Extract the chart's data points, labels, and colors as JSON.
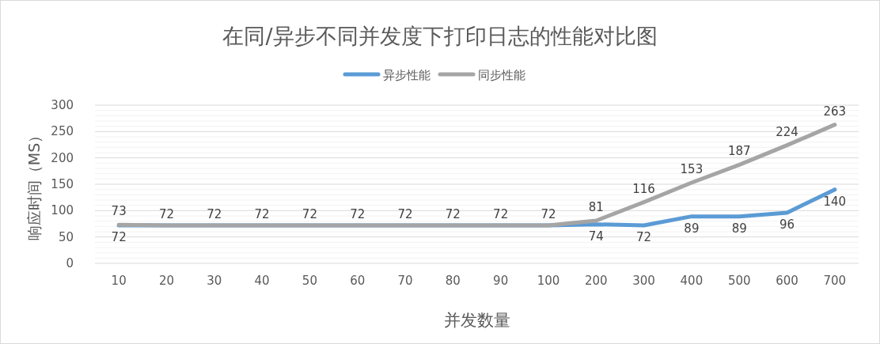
{
  "chart_data": {
    "type": "line",
    "title": "在同/异步不同并发度下打印日志的性能对比图",
    "xlabel": "并发数量",
    "ylabel": "响应时间（MS）",
    "categories": [
      "10",
      "20",
      "30",
      "40",
      "50",
      "60",
      "70",
      "80",
      "90",
      "100",
      "200",
      "300",
      "400",
      "500",
      "600",
      "700"
    ],
    "series": [
      {
        "name": "异步性能",
        "color": "#5b9bd5",
        "values": [
          72,
          72,
          72,
          72,
          72,
          72,
          72,
          72,
          72,
          72,
          74,
          72,
          89,
          89,
          96,
          140
        ],
        "value_labels": [
          "72",
          null,
          null,
          null,
          null,
          null,
          null,
          null,
          null,
          null,
          "74",
          "72",
          "89",
          "89",
          "96",
          "140"
        ]
      },
      {
        "name": "同步性能",
        "color": "#a5a5a5",
        "values": [
          73,
          72,
          72,
          72,
          72,
          72,
          72,
          72,
          72,
          72,
          81,
          116,
          153,
          187,
          224,
          263
        ],
        "value_labels": [
          "73",
          "72",
          "72",
          "72",
          "72",
          "72",
          "72",
          "72",
          "72",
          "72",
          "81",
          "116",
          "153",
          "187",
          "224",
          "263"
        ]
      }
    ],
    "ylim": [
      0,
      300
    ],
    "yticks": [
      0,
      50,
      100,
      150,
      200,
      250,
      300
    ],
    "grid": "y",
    "legend": "top",
    "line_style": "solid"
  }
}
